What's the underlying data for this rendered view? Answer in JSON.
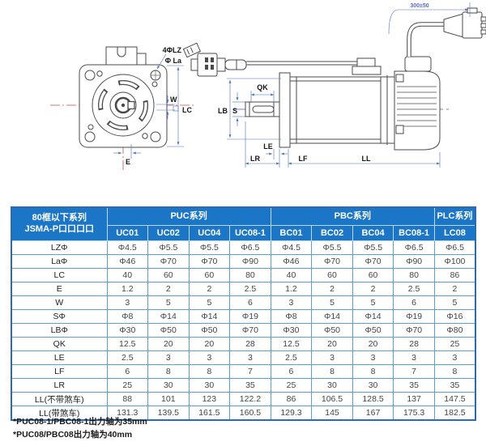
{
  "drawing": {
    "front": {
      "labels": {
        "holes": "4ΦLZ",
        "flange_circle": "Φ La",
        "key_width": "W",
        "frame_size": "LC",
        "key_offset": "E"
      }
    },
    "side": {
      "labels": {
        "shaft_flat": "QK",
        "pilot_dia": "LB",
        "shaft_dia": "S",
        "le": "LE",
        "lr": "LR",
        "lf": "LF",
        "ll": "LL",
        "cable_length": "300±50"
      }
    }
  },
  "table": {
    "corner": {
      "line1": "80框以下系列",
      "line2": "JSMA-P口口口口"
    },
    "groups": [
      {
        "label": "PUC系列",
        "cols": [
          "UC01",
          "UC02",
          "UC04",
          "UC08-1"
        ]
      },
      {
        "label": "PBC系列",
        "cols": [
          "BC01",
          "BC02",
          "BC04",
          "BC08-1"
        ]
      },
      {
        "label": "PLC系列",
        "cols": [
          "LC08"
        ]
      }
    ],
    "rows": [
      {
        "label": "LZΦ",
        "values": [
          "Φ4.5",
          "Φ5.5",
          "Φ5.5",
          "Φ6.5",
          "Φ4.5",
          "Φ5.5",
          "Φ5.5",
          "Φ6.5",
          "Φ6.5"
        ]
      },
      {
        "label": "LaΦ",
        "values": [
          "Φ46",
          "Φ70",
          "Φ70",
          "Φ90",
          "Φ46",
          "Φ70",
          "Φ70",
          "Φ90",
          "Φ100"
        ]
      },
      {
        "label": "LC",
        "values": [
          "40",
          "60",
          "60",
          "80",
          "40",
          "60",
          "60",
          "80",
          "86"
        ]
      },
      {
        "label": "E",
        "values": [
          "1.2",
          "2",
          "2",
          "2.5",
          "1.2",
          "2",
          "2",
          "2.5",
          "2"
        ]
      },
      {
        "label": "W",
        "values": [
          "3",
          "5",
          "5",
          "6",
          "3",
          "5",
          "5",
          "6",
          "5"
        ]
      },
      {
        "label": "SΦ",
        "values": [
          "Φ8",
          "Φ14",
          "Φ14",
          "Φ19",
          "Φ8",
          "Φ14",
          "Φ14",
          "Φ19",
          "Φ16"
        ]
      },
      {
        "label": "LBΦ",
        "values": [
          "Φ30",
          "Φ50",
          "Φ50",
          "Φ70",
          "Φ30",
          "Φ50",
          "Φ50",
          "Φ70",
          "Φ80"
        ]
      },
      {
        "label": "QK",
        "values": [
          "12.5",
          "20",
          "20",
          "28",
          "12.5",
          "20",
          "20",
          "28",
          "25"
        ]
      },
      {
        "label": "LE",
        "values": [
          "2.5",
          "3",
          "3",
          "3",
          "2.5",
          "3",
          "3",
          "3",
          "3"
        ]
      },
      {
        "label": "LF",
        "values": [
          "6",
          "8",
          "8",
          "7",
          "6",
          "8",
          "8",
          "7",
          "8"
        ]
      },
      {
        "label": "LR",
        "values": [
          "25",
          "30",
          "30",
          "35",
          "25",
          "30",
          "30",
          "35",
          "35"
        ]
      },
      {
        "label": "LL(不带煞车)",
        "values": [
          "88",
          "101",
          "123",
          "122.2",
          "86",
          "106.5",
          "128.5",
          "137",
          "147.5"
        ]
      },
      {
        "label": "LL(带煞车)",
        "values": [
          "131.3",
          "139.5",
          "161.5",
          "160.5",
          "129.3",
          "145",
          "167",
          "175.3",
          "182.5"
        ]
      }
    ]
  },
  "footnotes": [
    "*PUC08-1/PBC08-1出力轴为35mm",
    "*PUC08/PBC08出力轴为40mm"
  ],
  "colors": {
    "header_bg": "#1b76c8",
    "grid_line": "#5d9fd6",
    "outer_border": "#2b6cb0",
    "dimension_line": "#4a6fbf",
    "centerline_red": "#c0504d",
    "drawing_outline": "#4a4a4a"
  }
}
